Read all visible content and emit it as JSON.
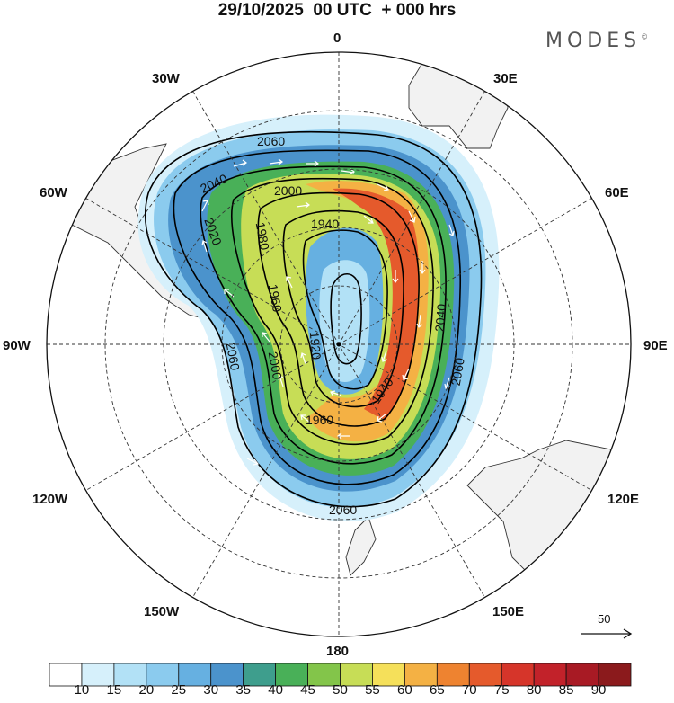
{
  "title": "29/10/2025  00 UTC  + 000 hrs",
  "logo": {
    "text": "MODES",
    "mark": "©"
  },
  "longitude_labels": {
    "top": "0",
    "bottom": "180",
    "left": "90W",
    "right": "90E",
    "upper_left_30": "30W",
    "upper_left_60": "60W",
    "upper_right_30": "30E",
    "upper_right_60": "60E",
    "lower_left_120": "120W",
    "lower_left_150": "150W",
    "lower_right_120": "120E",
    "lower_right_150": "150E"
  },
  "contour_labels": [
    "2060",
    "2040",
    "2000",
    "1940",
    "2020",
    "1980",
    "1960",
    "1920",
    "2000",
    "1960",
    "1940",
    "2060",
    "2040",
    "2060",
    "2060"
  ],
  "reference_vector": {
    "label": "50"
  },
  "colorbar": {
    "ticks": [
      "10",
      "15",
      "20",
      "25",
      "30",
      "35",
      "40",
      "45",
      "50",
      "55",
      "60",
      "65",
      "70",
      "75",
      "80",
      "85",
      "90"
    ],
    "colors": [
      "#ffffff",
      "#d6f0fb",
      "#b2e1f6",
      "#8bcbee",
      "#66b0e1",
      "#4b93cc",
      "#3e9e8d",
      "#49b058",
      "#83c54a",
      "#c7dd56",
      "#f5e05a",
      "#f4b144",
      "#ee8330",
      "#e55a2c",
      "#d6352a",
      "#c2222a",
      "#a81a24",
      "#8b1a1c"
    ]
  }
}
